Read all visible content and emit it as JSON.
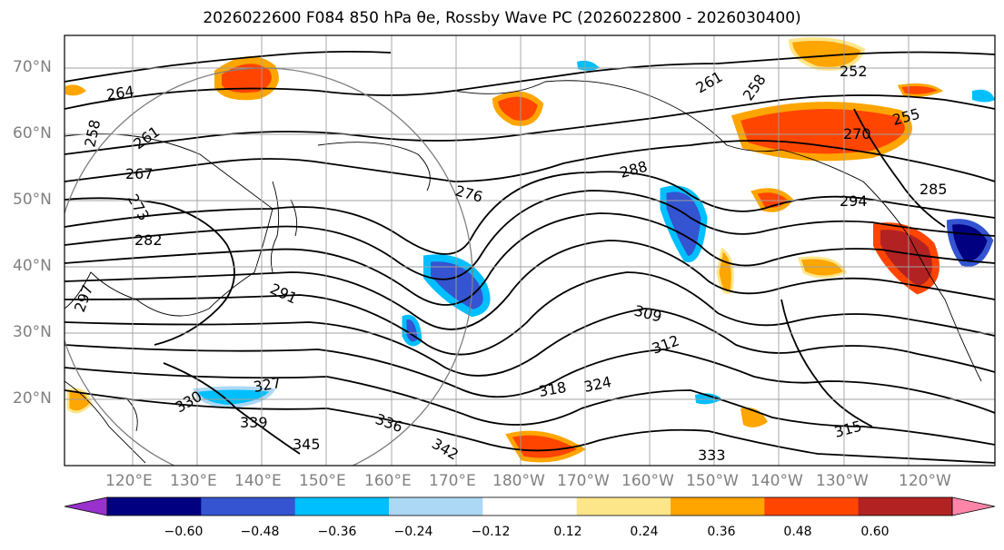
{
  "title": "2026022600 F084 850 hPa θe, Rossby Wave PC (2026022800 - 2026030400)",
  "map": {
    "latitude_labels": [
      "70°N",
      "60°N",
      "50°N",
      "40°N",
      "30°N",
      "20°N"
    ],
    "longitude_labels": [
      "120°E",
      "130°E",
      "140°E",
      "150°E",
      "160°E",
      "170°E",
      "180°W",
      "170°W",
      "160°W",
      "150°W",
      "140°W",
      "130°W",
      "120°W"
    ],
    "contour_labels": [
      "264",
      "258",
      "261",
      "267",
      "273",
      "282",
      "291",
      "297",
      "276",
      "288",
      "261",
      "258",
      "252",
      "255",
      "270",
      "294",
      "285",
      "309",
      "312",
      "315",
      "318",
      "324",
      "327",
      "330",
      "333",
      "336",
      "339",
      "342",
      "345"
    ]
  },
  "colorbar": {
    "tick_labels": [
      "−0.60",
      "−0.48",
      "−0.36",
      "−0.24",
      "−0.12",
      "0.12",
      "0.24",
      "0.36",
      "0.48",
      "0.60"
    ],
    "colors": [
      "#9932cc",
      "#000080",
      "#3454d1",
      "#00bfff",
      "#add8f5",
      "#ffffff",
      "#fde68a",
      "#ffa500",
      "#ff4500",
      "#b22222",
      "#ff85a8"
    ]
  }
}
